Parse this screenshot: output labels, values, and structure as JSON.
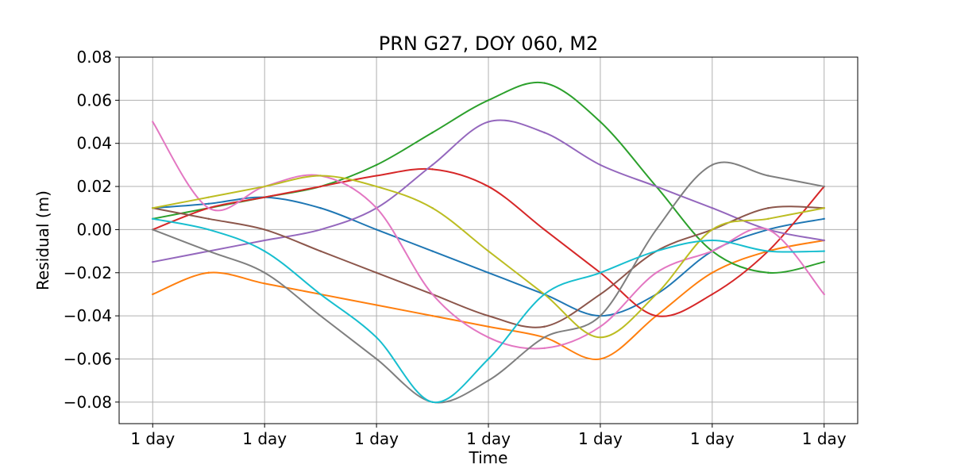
{
  "chart_data": {
    "type": "line",
    "title": "PRN G27, DOY 060, M2",
    "xlabel": "Time",
    "ylabel": "Residual (m)",
    "x_tick_labels": [
      "1 day",
      "1 day",
      "1 day",
      "1 day",
      "1 day",
      "1 day",
      "1 day"
    ],
    "x_range": [
      -0.3,
      6.3
    ],
    "ylim": [
      -0.09,
      0.08
    ],
    "y_ticks": [
      0.08,
      0.06,
      0.04,
      0.02,
      0.0,
      -0.02,
      -0.04,
      -0.06,
      -0.08
    ],
    "y_tick_labels": [
      "0.08",
      "0.06",
      "0.04",
      "0.02",
      "0.00",
      "−0.02",
      "−0.04",
      "−0.06",
      "−0.08"
    ],
    "grid": true,
    "legend": "none",
    "palette": [
      "#1f77b4",
      "#ff7f0e",
      "#2ca02c",
      "#d62728",
      "#9467bd",
      "#8c564b",
      "#e377c2",
      "#7f7f7f",
      "#bcbd22",
      "#17becf"
    ],
    "series": [
      {
        "color": "#1f77b4",
        "x": [
          0.0,
          0.5,
          1.0,
          1.5,
          2.0,
          2.5,
          3.0,
          3.5,
          4.0,
          4.5,
          5.0,
          5.5,
          6.0
        ],
        "values": [
          0.01,
          0.012,
          0.015,
          0.01,
          0.0,
          -0.01,
          -0.02,
          -0.03,
          -0.04,
          -0.03,
          -0.01,
          0.0,
          0.005
        ]
      },
      {
        "color": "#ff7f0e",
        "x": [
          0.0,
          0.5,
          1.0,
          1.5,
          2.0,
          2.5,
          3.0,
          3.5,
          4.0,
          4.5,
          5.0,
          5.5,
          6.0
        ],
        "values": [
          -0.03,
          -0.02,
          -0.025,
          -0.03,
          -0.035,
          -0.04,
          -0.045,
          -0.05,
          -0.06,
          -0.04,
          -0.02,
          -0.01,
          -0.005
        ]
      },
      {
        "color": "#2ca02c",
        "x": [
          0.0,
          0.5,
          1.0,
          1.5,
          2.0,
          2.5,
          3.0,
          3.5,
          4.0,
          4.5,
          5.0,
          5.5,
          6.0
        ],
        "values": [
          0.005,
          0.01,
          0.015,
          0.02,
          0.03,
          0.045,
          0.06,
          0.068,
          0.05,
          0.02,
          -0.01,
          -0.02,
          -0.015
        ]
      },
      {
        "color": "#d62728",
        "x": [
          0.0,
          0.5,
          1.0,
          1.5,
          2.0,
          2.5,
          3.0,
          3.5,
          4.0,
          4.5,
          5.0,
          5.5,
          6.0
        ],
        "values": [
          0.0,
          0.01,
          0.015,
          0.02,
          0.025,
          0.028,
          0.02,
          0.0,
          -0.02,
          -0.04,
          -0.03,
          -0.01,
          0.02
        ]
      },
      {
        "color": "#9467bd",
        "x": [
          0.0,
          0.5,
          1.0,
          1.5,
          2.0,
          2.5,
          3.0,
          3.5,
          4.0,
          4.5,
          5.0,
          5.5,
          6.0
        ],
        "values": [
          -0.015,
          -0.01,
          -0.005,
          0.0,
          0.01,
          0.03,
          0.05,
          0.045,
          0.03,
          0.02,
          0.01,
          0.0,
          -0.005
        ]
      },
      {
        "color": "#8c564b",
        "x": [
          0.0,
          0.5,
          1.0,
          1.5,
          2.0,
          2.5,
          3.0,
          3.5,
          4.0,
          4.5,
          5.0,
          5.5,
          6.0
        ],
        "values": [
          0.01,
          0.005,
          0.0,
          -0.01,
          -0.02,
          -0.03,
          -0.04,
          -0.045,
          -0.03,
          -0.01,
          0.0,
          0.01,
          0.01
        ]
      },
      {
        "color": "#e377c2",
        "x": [
          0.0,
          0.5,
          1.0,
          1.5,
          2.0,
          2.5,
          3.0,
          3.5,
          4.0,
          4.5,
          5.0,
          5.5,
          6.0
        ],
        "values": [
          0.05,
          0.01,
          0.02,
          0.025,
          0.01,
          -0.03,
          -0.05,
          -0.055,
          -0.045,
          -0.02,
          -0.01,
          0.0,
          -0.03
        ]
      },
      {
        "color": "#7f7f7f",
        "x": [
          0.0,
          0.5,
          1.0,
          1.5,
          2.0,
          2.5,
          3.0,
          3.5,
          4.0,
          4.5,
          5.0,
          5.5,
          6.0
        ],
        "values": [
          0.0,
          -0.01,
          -0.02,
          -0.04,
          -0.06,
          -0.08,
          -0.07,
          -0.05,
          -0.04,
          0.0,
          0.03,
          0.025,
          0.02
        ]
      },
      {
        "color": "#bcbd22",
        "x": [
          0.0,
          0.5,
          1.0,
          1.5,
          2.0,
          2.5,
          3.0,
          3.5,
          4.0,
          4.5,
          5.0,
          5.5,
          6.0
        ],
        "values": [
          0.01,
          0.015,
          0.02,
          0.025,
          0.02,
          0.01,
          -0.01,
          -0.03,
          -0.05,
          -0.03,
          0.0,
          0.005,
          0.01
        ]
      },
      {
        "color": "#17becf",
        "x": [
          0.0,
          0.5,
          1.0,
          1.5,
          2.0,
          2.5,
          3.0,
          3.5,
          4.0,
          4.5,
          5.0,
          5.5,
          6.0
        ],
        "values": [
          0.005,
          0.0,
          -0.01,
          -0.03,
          -0.05,
          -0.08,
          -0.06,
          -0.03,
          -0.02,
          -0.01,
          -0.005,
          -0.01,
          -0.01
        ]
      }
    ]
  }
}
